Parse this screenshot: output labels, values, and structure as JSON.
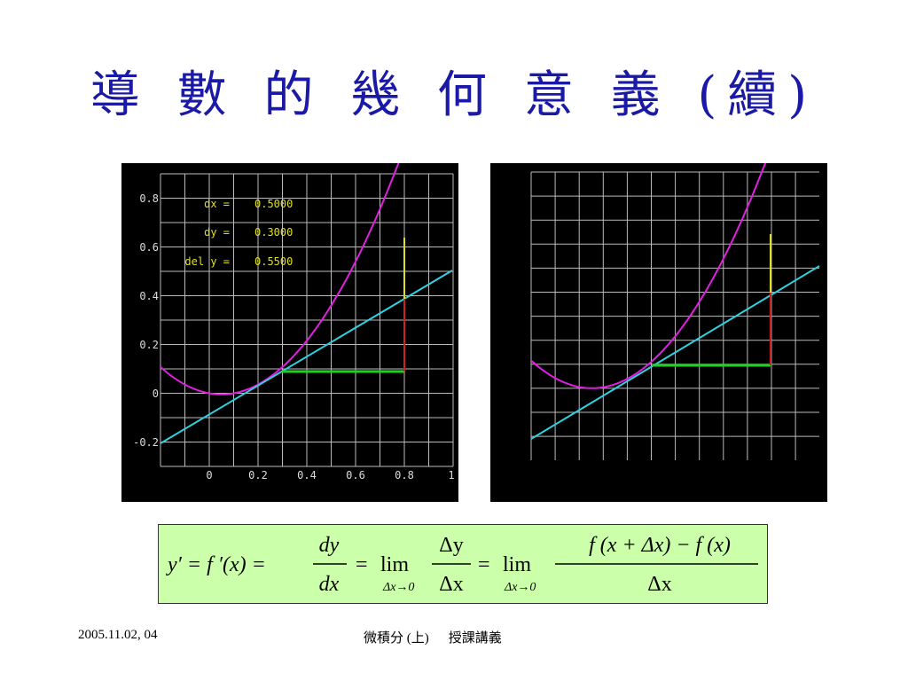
{
  "title": "導 數 的 幾 何 意 義 (續)",
  "left_graph": {
    "y_ticks": [
      "0.8",
      "0.6",
      "0.4",
      "0.2",
      "0",
      "-0.2"
    ],
    "x_ticks": [
      "0",
      "0.2",
      "0.4",
      "0.6",
      "0.8",
      "1"
    ],
    "readouts": [
      {
        "label": "dx =",
        "value": "0.5000"
      },
      {
        "label": "dy =",
        "value": "0.3000"
      },
      {
        "label": "del y =",
        "value": "0.5500"
      }
    ]
  },
  "formula": {
    "lhs": "y′ = f ′(x) =",
    "frac1_num": "dy",
    "frac1_den": "dx",
    "lim": "lim",
    "lim_sub": "Δx→0",
    "frac2_num": "Δy",
    "frac2_den": "Δx",
    "frac3_num": "f (x + Δx) − f (x)",
    "frac3_den": "Δx",
    "eq": "="
  },
  "footer": {
    "date": "2005.11.02, 04",
    "course": "微積分 (上)",
    "notes": "授課講義"
  },
  "colors": {
    "title": "#1a1aa6",
    "curve": "#e020e0",
    "tangent": "#30d0e0",
    "dx_segment": "#20d020",
    "dy_segment": "#d02020",
    "dely_segment": "#e0e020",
    "readout_text": "#e0e020",
    "formula_bg": "#ccffaa"
  }
}
